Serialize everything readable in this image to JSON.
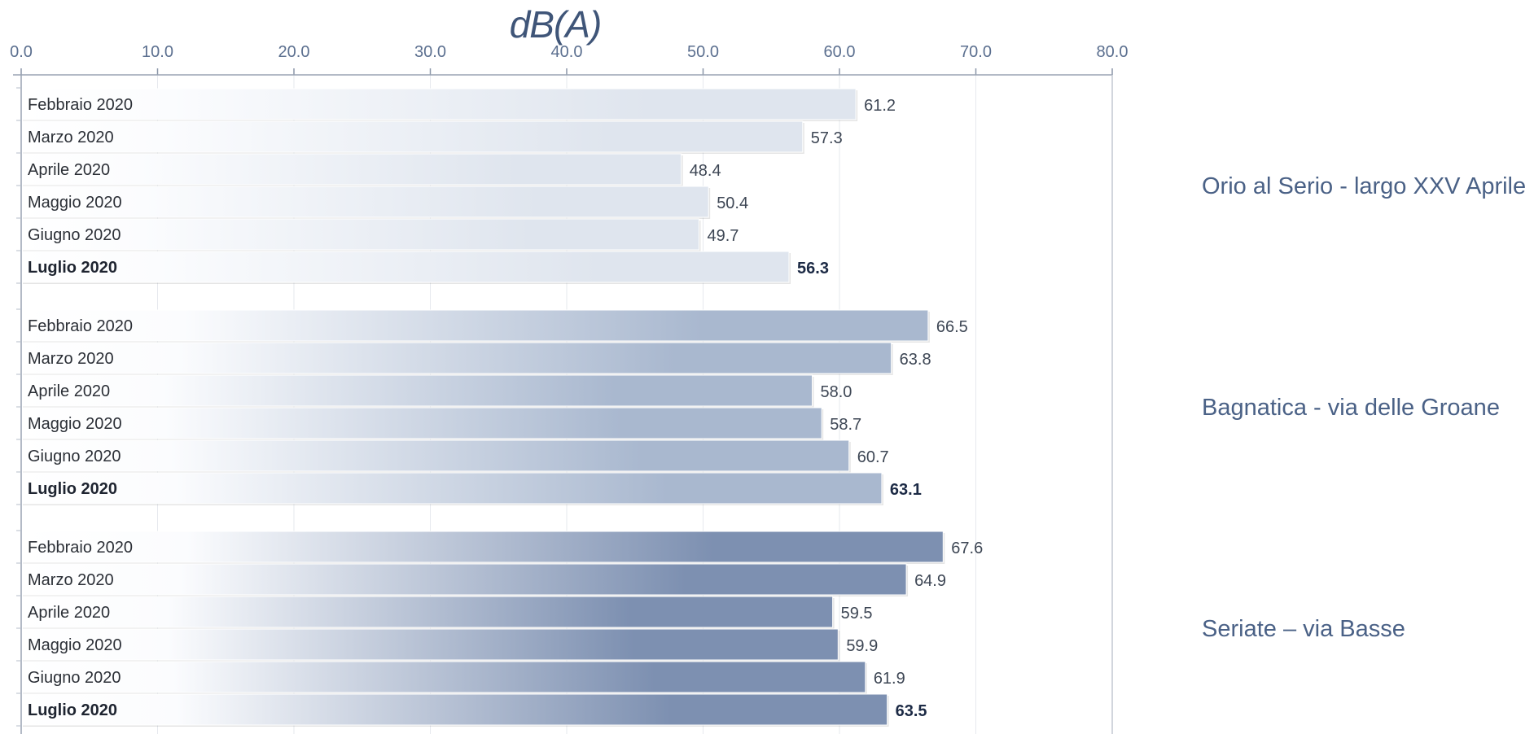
{
  "chart_data": {
    "type": "bar",
    "orientation": "horizontal",
    "xlabel": "dB(A)",
    "xlim": [
      0,
      80
    ],
    "x_ticks": [
      "0.0",
      "10.0",
      "20.0",
      "30.0",
      "40.0",
      "50.0",
      "60.0",
      "70.0",
      "80.0"
    ],
    "grid": true,
    "categories": [
      "Febbraio 2020",
      "Marzo 2020",
      "Aprile 2020",
      "Maggio 2020",
      "Giugno 2020",
      "Luglio 2020"
    ],
    "highlight_category": "Luglio 2020",
    "groups": [
      {
        "name": "Orio al Serio - largo XXV Aprile",
        "values": [
          61.2,
          57.3,
          48.4,
          50.4,
          49.7,
          56.3
        ],
        "value_labels": [
          "61.2",
          "57.3",
          "48.4",
          "50.4",
          "49.7",
          "56.3"
        ],
        "color": "#dfe5ee"
      },
      {
        "name": "Bagnatica - via delle Groane",
        "values": [
          66.5,
          63.8,
          58.0,
          58.7,
          60.7,
          63.1
        ],
        "value_labels": [
          "66.5",
          "63.8",
          "58.0",
          "58.7",
          "60.7",
          "63.1"
        ],
        "color": "#a9b8cf"
      },
      {
        "name": "Seriate – via Basse",
        "values": [
          67.6,
          64.9,
          59.5,
          59.9,
          61.9,
          63.5
        ],
        "value_labels": [
          "67.6",
          "64.9",
          "59.5",
          "59.9",
          "61.9",
          "63.5"
        ],
        "color": "#7d90b1"
      }
    ]
  }
}
